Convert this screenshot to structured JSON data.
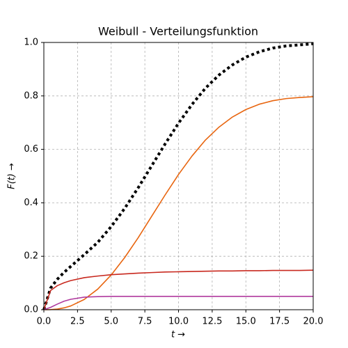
{
  "chart_data": {
    "type": "line",
    "title": "Weibull - Verteilungsfunktion",
    "x_label": "t →",
    "y_label": "F(t) →",
    "x": [
      0,
      0.5,
      1,
      1.5,
      2,
      3,
      4,
      5,
      6,
      7,
      8,
      9,
      10,
      11,
      12,
      13,
      14,
      15,
      16,
      17,
      18,
      19,
      20
    ],
    "series": [
      {
        "color": "#000000",
        "dashed": true,
        "values": [
          0,
          0.081,
          0.114,
          0.14,
          0.162,
          0.206,
          0.252,
          0.311,
          0.379,
          0.456,
          0.538,
          0.62,
          0.698,
          0.768,
          0.829,
          0.878,
          0.916,
          0.945,
          0.965,
          0.979,
          0.987,
          0.991,
          0.995
        ]
      },
      {
        "color": "#e8650f",
        "values": [
          0,
          0.0004,
          0.0025,
          0.0069,
          0.0142,
          0.0385,
          0.077,
          0.13,
          0.195,
          0.269,
          0.349,
          0.429,
          0.506,
          0.575,
          0.635,
          0.683,
          0.721,
          0.749,
          0.769,
          0.782,
          0.79,
          0.794,
          0.797
        ]
      },
      {
        "color": "#c8281e",
        "values": [
          0,
          0.072,
          0.09,
          0.101,
          0.109,
          0.12,
          0.126,
          0.131,
          0.134,
          0.137,
          0.139,
          0.141,
          0.142,
          0.143,
          0.144,
          0.145,
          0.145,
          0.146,
          0.146,
          0.147,
          0.147,
          0.147,
          0.148
        ]
      },
      {
        "color": "#b03a9e",
        "values": [
          0,
          0.0088,
          0.021,
          0.032,
          0.039,
          0.047,
          0.049,
          0.05,
          0.05,
          0.05,
          0.05,
          0.05,
          0.05,
          0.05,
          0.05,
          0.05,
          0.05,
          0.05,
          0.05,
          0.05,
          0.05,
          0.05,
          0.05
        ]
      }
    ],
    "xlim": [
      0,
      20
    ],
    "xticks": [
      {
        "value": 0,
        "label": "0.0"
      },
      2.5,
      {
        "value": 5,
        "label": "5.0"
      },
      7.5,
      {
        "value": 10,
        "label": "10.0"
      },
      12.5,
      {
        "value": 15,
        "label": "15.0"
      },
      17.5,
      {
        "value": 20,
        "label": "20.0"
      }
    ],
    "ylim": [
      0,
      1
    ],
    "yticks": [
      {
        "value": 0,
        "label": "0.0"
      },
      0.2,
      0.4,
      0.6,
      0.8,
      {
        "value": 1,
        "label": "1.0"
      }
    ],
    "grid": true
  }
}
